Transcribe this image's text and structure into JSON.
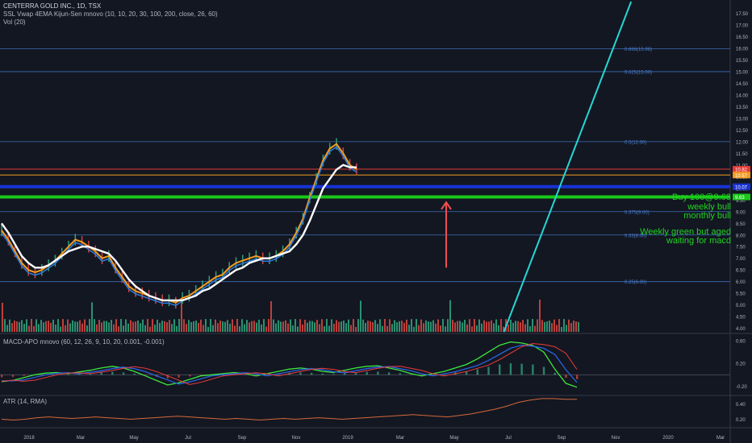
{
  "header": {
    "symbol_line": "CENTERRA GOLD INC., 1D, TSX",
    "indicator_line": "SSL Vwap 4EMA Kijun-Sen mnovo (10, 10, 20, 30, 100, 200, close, 26, 60)",
    "volume_line": "Vol (20)"
  },
  "macd_pane": {
    "title": "MACD-APO mnovo (60, 12, 26, 9, 10, 20, 0.001, -0.001)"
  },
  "atr_pane": {
    "title": "ATR (14, RMA)"
  },
  "colors": {
    "background": "#131722",
    "grid": "#2a2e39",
    "fib_line": "#3b6fb6",
    "fib_label": "#4c7fd0",
    "trendline": "#26d7d3",
    "up_candle": "#2e9f7a",
    "down_candle": "#d0453f",
    "annotation_green": "#21d321",
    "arrow": "#ef4f4f",
    "blue_level": "#1733d6",
    "green_level": "#19c919",
    "white_ma": "#ffffff",
    "orange_ma": "#f39c1f",
    "blue_ma": "#2f7de1",
    "atr_line": "#d5683a",
    "macd_green": "#3de83d",
    "macd_red": "#ef3b3b",
    "macd_blue": "#2a63e0"
  },
  "annotations": [
    "Buy 100@9.63",
    "weekly bull",
    "monthly bull",
    "Weekly green but aged",
    "waiting for macd"
  ],
  "chart_data": [
    {
      "type": "line",
      "pane": "price",
      "title": "CENTERRA GOLD INC., 1D, TSX",
      "x_axis_labels": [
        "2018",
        "Mar",
        "May",
        "Jul",
        "Sep",
        "Nov",
        "2019",
        "Mar",
        "May",
        "Jul",
        "Sep",
        "Nov",
        "2020",
        "Mar"
      ],
      "y_tick_labels": [
        "4.00",
        "4.50",
        "5.00",
        "5.50",
        "6.00",
        "6.50",
        "7.00",
        "7.50",
        "8.00",
        "8.50",
        "9.00",
        "9.50",
        "10.00",
        "10.50",
        "11.00",
        "11.50",
        "12.00",
        "12.50",
        "13.00",
        "13.50",
        "14.00",
        "14.50",
        "15.00",
        "15.50",
        "16.00",
        "16.50",
        "17.00",
        "17.50"
      ],
      "ylim": [
        3.85,
        18.0
      ],
      "grid": true,
      "fib_levels": [
        {
          "label": "0.25(6.00)",
          "value": 6.0
        },
        {
          "label": "0.33(8.00)",
          "value": 8.0
        },
        {
          "label": "0.375(9.00)",
          "value": 9.0
        },
        {
          "label": "0.5(12.00)",
          "value": 12.0
        },
        {
          "label": "0.625(15.00)",
          "value": 15.0
        },
        {
          "label": "0.666(15.98)",
          "value": 15.98
        }
      ],
      "price_labels": [
        {
          "text": "10.82",
          "value": 10.82,
          "color": "#e53935"
        },
        {
          "text": "10.57",
          "value": 10.57,
          "color": "#f39c1f"
        },
        {
          "text": "10.07",
          "value": 10.07,
          "color": "#1733d6"
        },
        {
          "text": "9.63",
          "value": 9.63,
          "color": "#19c919"
        }
      ],
      "horizontal_lines": [
        {
          "value": 10.82,
          "color": "#e53935"
        },
        {
          "value": 10.57,
          "color": "#f39c1f"
        },
        {
          "value": 10.07,
          "color": "#1733d6"
        },
        {
          "value": 9.63,
          "color": "#19c919"
        }
      ],
      "series": [
        {
          "name": "Close",
          "x": [
            0,
            5,
            10,
            15,
            20,
            25,
            30,
            35,
            40,
            45,
            50,
            55,
            60,
            65,
            70,
            75,
            80,
            85,
            90,
            95,
            100,
            105,
            110,
            115,
            120,
            125,
            130,
            135,
            140,
            145,
            150,
            155,
            160,
            165,
            170,
            175,
            180,
            185,
            190,
            195,
            200,
            205,
            210,
            215,
            220,
            225,
            230,
            235,
            240,
            245,
            250,
            255,
            260,
            265,
            270,
            275,
            280,
            285,
            290,
            295,
            300,
            305,
            310,
            315,
            320,
            325,
            330,
            335,
            340,
            345,
            350,
            355,
            360,
            365,
            370,
            375,
            380,
            385,
            390,
            395,
            400,
            405,
            410,
            415,
            420,
            425,
            430
          ],
          "values": [
            8.2,
            7.8,
            7.3,
            6.8,
            6.5,
            6.4,
            6.5,
            6.7,
            6.9,
            7.2,
            7.5,
            7.8,
            7.7,
            7.5,
            7.3,
            7.0,
            7.1,
            6.6,
            6.2,
            5.8,
            5.6,
            5.5,
            5.4,
            5.3,
            5.2,
            5.2,
            5.1,
            5.3,
            5.4,
            5.6,
            5.8,
            6.0,
            6.2,
            6.3,
            6.6,
            6.8,
            6.9,
            7.0,
            7.1,
            7.0,
            7.0,
            7.1,
            7.3,
            7.6,
            8.1,
            8.7,
            9.6,
            10.4,
            11.2,
            11.7,
            11.9,
            11.5,
            11.0,
            10.82,
            null,
            null,
            null,
            null,
            null,
            null,
            null,
            null,
            null,
            null,
            null,
            null,
            null,
            null,
            null,
            null,
            null,
            null,
            null,
            null,
            null,
            null,
            null,
            null,
            null,
            null,
            null,
            null,
            null,
            null,
            null,
            null,
            null
          ]
        },
        {
          "name": "White MA",
          "values": [
            8.5,
            8.1,
            7.6,
            7.1,
            6.8,
            6.6,
            6.6,
            6.7,
            6.9,
            7.1,
            7.3,
            7.4,
            7.5,
            7.5,
            7.4,
            7.3,
            7.2,
            6.9,
            6.5,
            6.1,
            5.8,
            5.6,
            5.4,
            5.3,
            5.2,
            5.2,
            5.2,
            5.2,
            5.3,
            5.4,
            5.6,
            5.7,
            5.9,
            6.1,
            6.3,
            6.5,
            6.6,
            6.8,
            6.9,
            7.0,
            7.0,
            7.1,
            7.2,
            7.3,
            7.6,
            8.0,
            8.6,
            9.3,
            10.0,
            10.4,
            10.8,
            11.0,
            10.9,
            10.9
          ]
        }
      ],
      "trendline": {
        "from": [
          375,
          3.85
        ],
        "to": [
          470,
          18.0
        ]
      }
    },
    {
      "type": "line",
      "pane": "macd",
      "title": "MACD-APO mnovo (60, 12, 26, 9, 10, 20, 0.001, -0.001)",
      "y_tick_labels": [
        "0.60",
        "0.20",
        "-0.20"
      ],
      "ylim": [
        -0.35,
        0.7
      ],
      "series": [
        {
          "name": "",
          "values": [
            -0.12,
            -0.1,
            -0.05,
            0.0,
            0.03,
            0.04,
            0.02,
            0.05,
            0.08,
            0.12,
            0.15,
            0.12,
            0.06,
            -0.02,
            -0.1,
            -0.18,
            -0.14,
            -0.08,
            -0.02,
            0.0,
            0.02,
            0.04,
            0.02,
            -0.02,
            0.02,
            0.06,
            0.1,
            0.12,
            0.1,
            0.06,
            0.04,
            0.08,
            0.12,
            0.15,
            0.16,
            0.12,
            0.08,
            0.02,
            -0.02,
            0.02,
            0.06,
            0.12,
            0.18,
            0.28,
            0.4,
            0.52,
            0.58,
            0.56,
            0.52,
            0.4,
            0.1,
            -0.15,
            -0.22
          ]
        }
      ]
    },
    {
      "type": "line",
      "pane": "atr",
      "title": "ATR (14, RMA)",
      "y_tick_labels": [
        "0.40",
        "0.20"
      ],
      "ylim": [
        0.1,
        0.5
      ],
      "series": [
        {
          "name": "",
          "values": [
            0.2,
            0.19,
            0.2,
            0.22,
            0.23,
            0.22,
            0.21,
            0.22,
            0.23,
            0.22,
            0.21,
            0.2,
            0.21,
            0.22,
            0.23,
            0.24,
            0.23,
            0.22,
            0.21,
            0.2,
            0.21,
            0.2,
            0.19,
            0.2,
            0.21,
            0.2,
            0.21,
            0.22,
            0.21,
            0.2,
            0.21,
            0.22,
            0.23,
            0.24,
            0.25,
            0.26,
            0.25,
            0.24,
            0.23,
            0.25,
            0.27,
            0.3,
            0.33,
            0.37,
            0.42,
            0.45,
            0.47,
            0.47,
            0.46,
            0.46
          ]
        }
      ]
    }
  ]
}
